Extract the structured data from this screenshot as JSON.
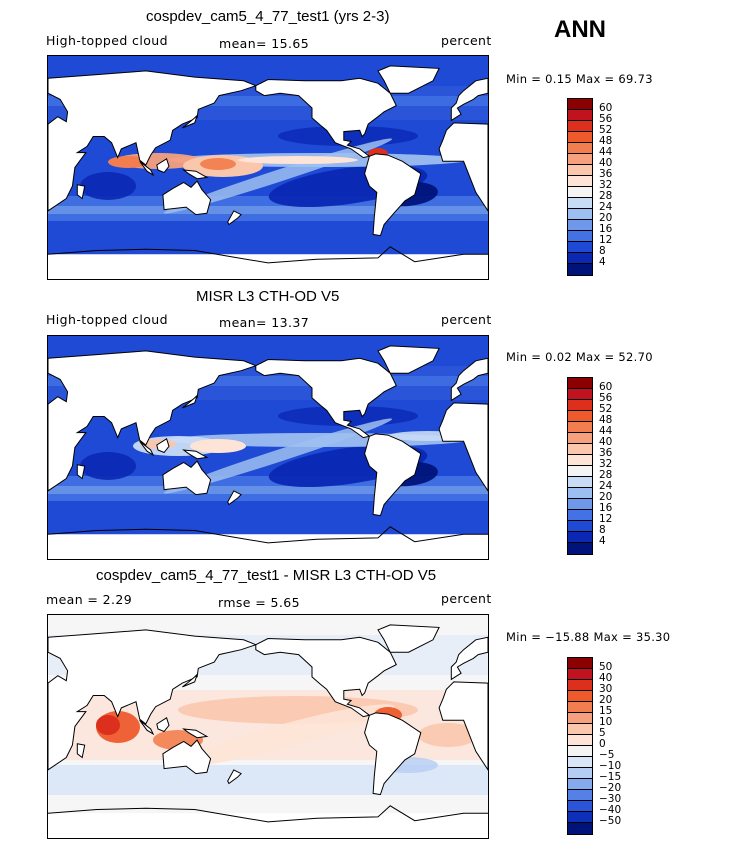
{
  "season": "ANN",
  "panels": [
    {
      "title": "cospdev_cam5_4_77_test1 (yrs 2-3)",
      "left_label": "High-topped cloud",
      "center_label": "mean=  15.65",
      "right_label": "percent",
      "minmax": "Min =   0.15 Max =  69.73",
      "colorbar": {
        "ticks": [
          "60",
          "56",
          "52",
          "48",
          "44",
          "40",
          "36",
          "32",
          "28",
          "24",
          "20",
          "16",
          "12",
          "8",
          "4"
        ],
        "colors": [
          "#8b0000",
          "#c1121f",
          "#dc2f1e",
          "#ee5a2c",
          "#f27e4f",
          "#f6a07e",
          "#fac7ad",
          "#fde4d7",
          "#f4f4f4",
          "#c9dcf6",
          "#9dbef0",
          "#6f98ea",
          "#4272e3",
          "#1f4ad5",
          "#0a28b4",
          "#00137a"
        ]
      },
      "map_style": "model"
    },
    {
      "title": "MISR L3 CTH-OD V5",
      "left_label": "High-topped cloud",
      "center_label": "mean=  13.37",
      "right_label": "percent",
      "minmax": "Min =   0.02 Max =  52.70",
      "colorbar": {
        "ticks": [
          "60",
          "56",
          "52",
          "48",
          "44",
          "40",
          "36",
          "32",
          "28",
          "24",
          "20",
          "16",
          "12",
          "8",
          "4"
        ],
        "colors": [
          "#8b0000",
          "#c1121f",
          "#dc2f1e",
          "#ee5a2c",
          "#f27e4f",
          "#f6a07e",
          "#fac7ad",
          "#fde4d7",
          "#f4f4f4",
          "#c9dcf6",
          "#9dbef0",
          "#6f98ea",
          "#4272e3",
          "#1f4ad5",
          "#0a28b4",
          "#00137a"
        ]
      },
      "map_style": "obs"
    },
    {
      "title": "cospdev_cam5_4_77_test1 - MISR L3 CTH-OD V5",
      "left_label": "mean =    2.29",
      "center_label": "rmse =    5.65",
      "right_label": "percent",
      "minmax": "Min = −15.88 Max =  35.30",
      "colorbar": {
        "ticks": [
          "50",
          "40",
          "30",
          "20",
          "15",
          "10",
          "5",
          "0",
          "−5",
          "−10",
          "−15",
          "−20",
          "−30",
          "−40",
          "−50"
        ],
        "colors": [
          "#8b0000",
          "#c1121f",
          "#dc2f1e",
          "#ee5a2c",
          "#f27e4f",
          "#f6a07e",
          "#fac7ad",
          "#fde4d7",
          "#f4f4f4",
          "#d9e6f8",
          "#b5cdf2",
          "#86aaee",
          "#5580e6",
          "#2a55d9",
          "#0e2fb8",
          "#00137a"
        ]
      },
      "map_style": "diff"
    }
  ]
}
